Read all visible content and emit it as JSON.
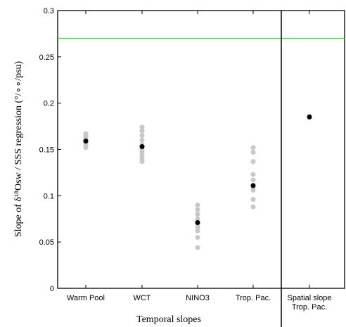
{
  "chart_data": {
    "type": "scatter",
    "xlabel": "Temporal slopes",
    "ylabel": "Slope of δ¹⁸Osw / SSS regression (°/∘∘/psu)",
    "categories": [
      "Warm Pool",
      "WCT",
      "NINO3",
      "Trop. Pac.",
      [
        "Spatial slope",
        "Trop. Pac."
      ]
    ],
    "series": [
      {
        "color": "#c8c8c8",
        "values": [
          [
            0.152,
            0.155,
            0.158,
            0.161,
            0.163,
            0.165,
            0.167
          ],
          [
            0.137,
            0.14,
            0.143,
            0.147,
            0.15,
            0.155,
            0.16,
            0.165,
            0.17,
            0.174
          ],
          [
            0.044,
            0.055,
            0.062,
            0.066,
            0.07,
            0.075,
            0.08,
            0.085,
            0.09
          ],
          [
            0.088,
            0.096,
            0.106,
            0.11,
            0.117,
            0.123,
            0.137,
            0.147,
            0.152
          ],
          [
            0.186
          ]
        ]
      },
      {
        "color": "#000000",
        "values": [
          0.159,
          0.153,
          0.071,
          0.111,
          0.185
        ]
      }
    ],
    "hlines": [
      {
        "value": 0.27,
        "color": "#33dd33"
      }
    ],
    "ylim": [
      0,
      0.3
    ],
    "yticks": [
      0,
      0.05,
      0.1,
      0.15,
      0.2,
      0.25,
      0.3
    ]
  }
}
